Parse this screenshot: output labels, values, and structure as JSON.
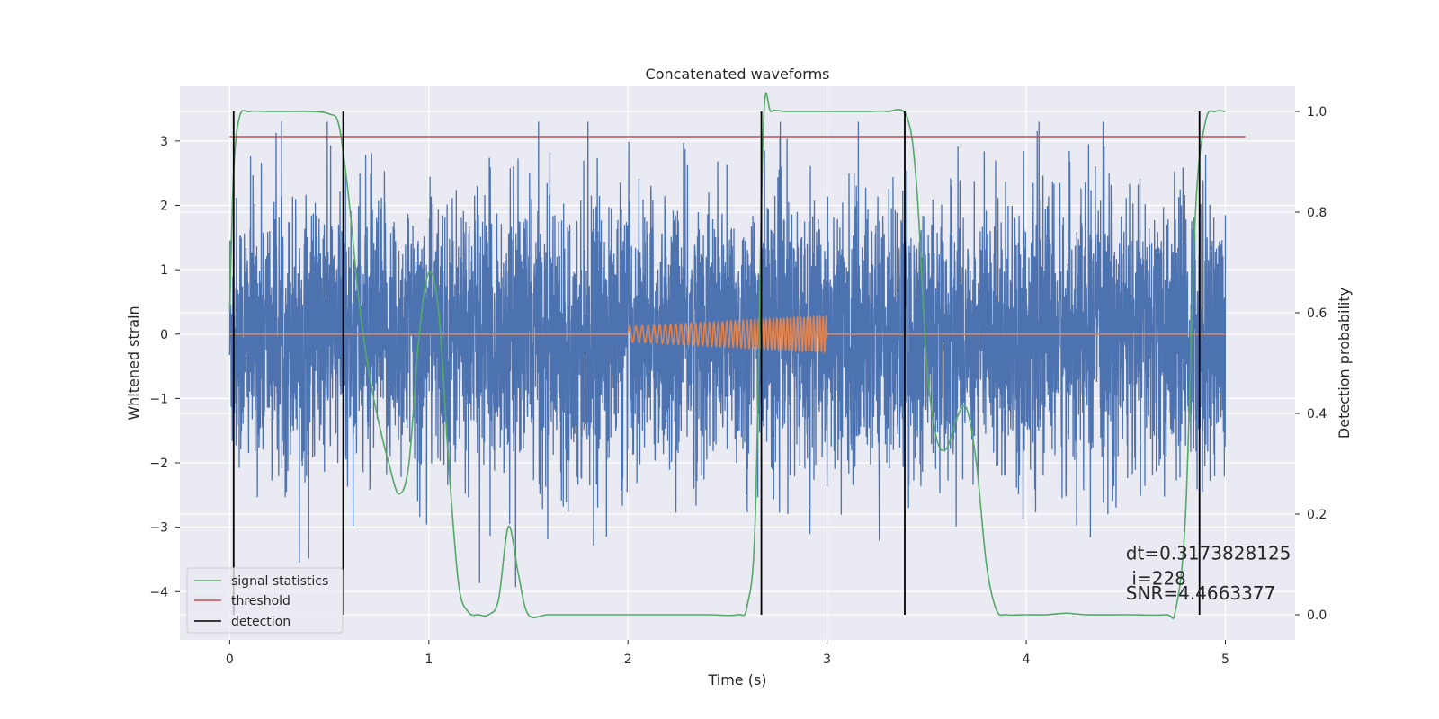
{
  "chart_data": {
    "type": "line",
    "title": "Concatenated waveforms",
    "xlabel": "Time (s)",
    "ylabel": "Whitened strain",
    "y2label": "Detection probability",
    "xlim": [
      -0.25,
      5.35
    ],
    "ylim": [
      -4.75,
      3.85
    ],
    "y2lim": [
      -0.05,
      1.05
    ],
    "x_ticks": [
      0,
      1,
      2,
      3,
      4,
      5
    ],
    "y_ticks": [
      -4,
      -3,
      -2,
      -1,
      0,
      1,
      2,
      3
    ],
    "y2_ticks": [
      0.0,
      0.2,
      0.4,
      0.6,
      0.8,
      1.0
    ],
    "grid": true,
    "legend_position": "lower-left",
    "colors": {
      "strain": "#4c72b0",
      "template": "#dd8452",
      "signal_statistics": "#55a868",
      "threshold": "#c44e52",
      "detection": "#000000",
      "axes_bg": "#eaeaf2",
      "grid": "#ffffff"
    },
    "series": [
      {
        "name": "",
        "role": "whitened-strain",
        "axis": "left",
        "x_range": [
          0,
          5
        ],
        "description_values": {
          "typical_amplitude": 1.1,
          "min": -4.3,
          "max": 3.3
        }
      },
      {
        "name": "",
        "role": "injected-waveform",
        "axis": "left",
        "segments": [
          {
            "x": [
              0,
              2.0
            ],
            "amplitude": 0.0
          },
          {
            "x": [
              2.0,
              3.0
            ],
            "amplitude_start": 0.12,
            "amplitude_end": 0.28,
            "freq_start": 30,
            "freq_end": 65
          },
          {
            "x": [
              3.0,
              5.0
            ],
            "amplitude": 0.0
          }
        ]
      },
      {
        "name": "signal statistics",
        "axis": "right",
        "x": [
          0.0,
          0.02,
          0.05,
          0.1,
          0.2,
          0.3,
          0.4,
          0.5,
          0.55,
          0.6,
          0.65,
          0.7,
          0.75,
          0.8,
          0.85,
          0.9,
          0.95,
          1.0,
          1.05,
          1.1,
          1.15,
          1.2,
          1.25,
          1.3,
          1.35,
          1.4,
          1.45,
          1.5,
          1.6,
          1.8,
          2.0,
          2.2,
          2.4,
          2.55,
          2.6,
          2.64,
          2.68,
          2.72,
          2.8,
          3.0,
          3.2,
          3.3,
          3.4,
          3.45,
          3.5,
          3.55,
          3.6,
          3.65,
          3.7,
          3.75,
          3.8,
          3.85,
          3.9,
          4.0,
          4.1,
          4.2,
          4.3,
          4.5,
          4.7,
          4.75,
          4.8,
          4.85,
          4.9,
          4.95,
          5.0
        ],
        "y": [
          0.6,
          0.88,
          0.99,
          1.0,
          1.0,
          1.0,
          1.0,
          0.995,
          0.97,
          0.82,
          0.62,
          0.48,
          0.38,
          0.3,
          0.24,
          0.3,
          0.55,
          0.68,
          0.6,
          0.3,
          0.06,
          0.005,
          0.0,
          0.0,
          0.03,
          0.175,
          0.08,
          0.0,
          0.0,
          0.0,
          0.0,
          0.0,
          0.0,
          0.0,
          0.02,
          0.2,
          0.97,
          1.0,
          1.0,
          1.0,
          1.0,
          1.0,
          0.99,
          0.85,
          0.5,
          0.35,
          0.33,
          0.39,
          0.41,
          0.3,
          0.1,
          0.01,
          0.0,
          0.0,
          0.0,
          0.003,
          0.0,
          0.0,
          0.0,
          0.01,
          0.2,
          0.8,
          0.98,
          1.0,
          1.0
        ]
      },
      {
        "name": "threshold",
        "axis": "right",
        "x": [
          0.0,
          5.1
        ],
        "y": [
          0.95,
          0.95
        ]
      },
      {
        "name": "detection",
        "axis": "right",
        "type": "vlines",
        "x": [
          0.02,
          0.57,
          2.67,
          3.39,
          4.87
        ],
        "y_range": [
          0.0,
          1.0
        ]
      }
    ],
    "annotations": [
      {
        "text": "dt=0.3173828125",
        "x": 4.5,
        "y": 0.11
      },
      {
        "text": "i=228",
        "x": 4.53,
        "y": 0.06
      },
      {
        "text": "SNR=4.4663377",
        "x": 4.5,
        "y": 0.03
      }
    ]
  }
}
